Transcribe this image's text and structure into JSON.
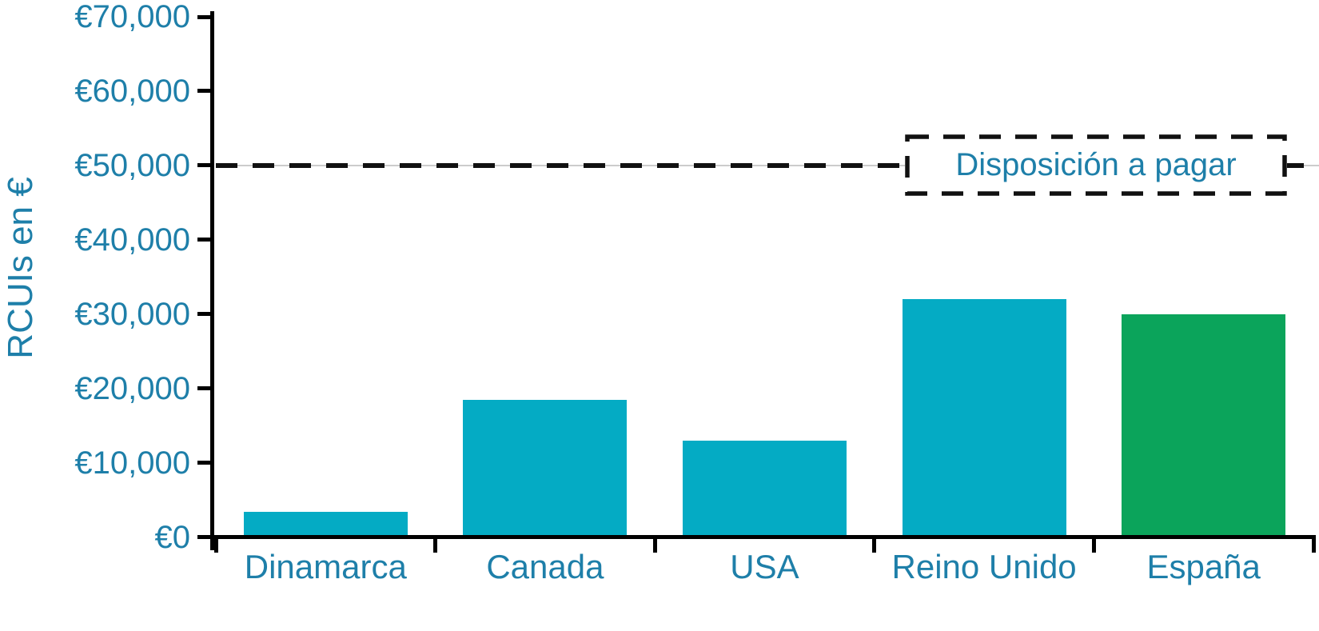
{
  "chart_data": {
    "type": "bar",
    "title": "",
    "categories": [
      "Dinamarca",
      "Canada",
      "USA",
      "Reino Unido",
      "España"
    ],
    "values": [
      3400,
      18500,
      13000,
      32000,
      30000
    ],
    "bar_colors": [
      "#04ABC4",
      "#04ABC4",
      "#04ABC4",
      "#04ABC4",
      "#0BA45B"
    ],
    "xlabel": "",
    "ylabel": "RCUIs en €",
    "ylim": [
      0,
      70000
    ],
    "ytick_step": 10000,
    "ytick_labels": [
      "€0",
      "€10,000",
      "€20,000",
      "€30,000",
      "€40,000",
      "€50,000",
      "€60,000",
      "€70,000"
    ],
    "grid": false,
    "legend_position": "inside-top-right",
    "threshold_line": {
      "value": 50000,
      "label": "Disposición a pagar",
      "style": "dashed"
    }
  },
  "colors": {
    "text": "#1E7FA9",
    "axis": "#000000",
    "dash": "#111111",
    "bar_teal": "#04ABC4",
    "bar_green": "#0BA45B",
    "background": "#FFFFFF"
  }
}
